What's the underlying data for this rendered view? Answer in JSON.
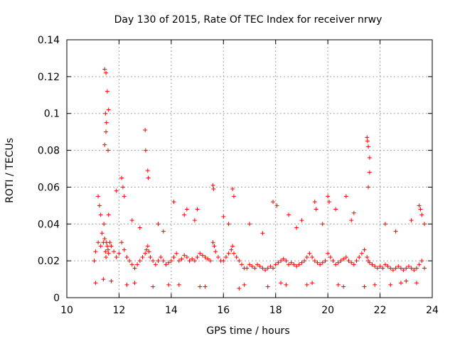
{
  "chart_data": {
    "type": "scatter",
    "title": "Day 130 of 2015, Rate Of TEC Index for receiver nrwy",
    "xlabel": "GPS time / hours",
    "ylabel": "ROTI / TECUs",
    "xlim": [
      10,
      24
    ],
    "ylim": [
      0,
      0.14
    ],
    "x_ticks": [
      10,
      12,
      14,
      16,
      18,
      20,
      22,
      24
    ],
    "x_tick_labels": [
      "10",
      "12",
      "14",
      "16",
      "18",
      "20",
      "22",
      "24"
    ],
    "y_ticks": [
      0,
      0.02,
      0.04,
      0.06,
      0.08,
      0.1,
      0.12,
      0.14
    ],
    "y_tick_labels": [
      "0",
      "0.02",
      "0.04",
      "0.06",
      "0.08",
      "0.1",
      "0.12",
      "0.14"
    ],
    "grid": true,
    "marker": "+",
    "marker_color": "#ff0000",
    "series": [
      {
        "name": "ROTI",
        "x": [
          11.05,
          11.1,
          11.2,
          11.3,
          11.35,
          11.4,
          11.42,
          11.45,
          11.48,
          11.5,
          11.52,
          11.55,
          11.58,
          11.6,
          11.65,
          11.7,
          11.8,
          11.9,
          12.0,
          12.1,
          12.2,
          12.3,
          12.4,
          12.5,
          12.6,
          12.7,
          12.8,
          12.9,
          13.0,
          13.05,
          13.1,
          13.15,
          13.2,
          13.3,
          13.4,
          13.5,
          13.6,
          13.7,
          13.8,
          13.9,
          14.0,
          14.1,
          14.2,
          14.3,
          14.4,
          14.5,
          14.6,
          14.7,
          14.8,
          14.9,
          15.0,
          15.1,
          15.2,
          15.3,
          15.4,
          15.5,
          15.6,
          15.65,
          15.7,
          15.8,
          15.9,
          16.0,
          16.1,
          16.2,
          16.3,
          16.35,
          16.4,
          16.5,
          16.6,
          16.7,
          16.8,
          16.9,
          17.0,
          17.1,
          17.2,
          17.3,
          17.4,
          17.5,
          17.6,
          17.7,
          17.8,
          17.9,
          18.0,
          18.1,
          18.2,
          18.3,
          18.4,
          18.5,
          18.6,
          18.7,
          18.8,
          18.9,
          19.0,
          19.1,
          19.2,
          19.3,
          19.4,
          19.5,
          19.6,
          19.7,
          19.8,
          19.9,
          20.0,
          20.1,
          20.2,
          20.3,
          20.4,
          20.5,
          20.6,
          20.7,
          20.8,
          20.9,
          21.0,
          21.1,
          21.2,
          21.3,
          21.4,
          21.5,
          21.55,
          21.6,
          21.7,
          21.8,
          21.9,
          22.0,
          22.1,
          22.2,
          22.3,
          22.4,
          22.5,
          22.6,
          22.7,
          22.8,
          22.9,
          23.0,
          23.1,
          23.2,
          23.3,
          23.4,
          23.5,
          23.6,
          23.7,
          11.45,
          11.5,
          11.55,
          11.6,
          11.48,
          11.52,
          11.5,
          11.45,
          11.58,
          13.0,
          13.02,
          13.1,
          13.12,
          12.1,
          12.15,
          12.2,
          11.9,
          14.1,
          14.6,
          15.6,
          15.62,
          16.35,
          16.4,
          17.9,
          18.05,
          19.5,
          19.55,
          20.0,
          20.05,
          20.7,
          21.5,
          21.52,
          21.55,
          21.6,
          21.6,
          21.55,
          23.5,
          23.55,
          23.6,
          11.2,
          11.25,
          11.3,
          12.5,
          13.5,
          14.5,
          15.0,
          16.0,
          17.0,
          18.5,
          19.0,
          20.3,
          21.0,
          22.2,
          23.2,
          11.6,
          12.8,
          13.7,
          14.9,
          16.2,
          17.5,
          18.8,
          19.8,
          20.9,
          22.6,
          23.7,
          11.1,
          11.7,
          12.3,
          13.3,
          14.3,
          15.3,
          16.6,
          17.7,
          18.4,
          19.4,
          20.4,
          21.4,
          22.4,
          23.4,
          11.4,
          12.6,
          13.9,
          15.1,
          16.8,
          18.2,
          19.2,
          20.6,
          21.8,
          22.8,
          23.0
        ],
        "y": [
          0.02,
          0.025,
          0.03,
          0.028,
          0.035,
          0.03,
          0.04,
          0.032,
          0.025,
          0.022,
          0.03,
          0.028,
          0.026,
          0.024,
          0.03,
          0.028,
          0.025,
          0.022,
          0.024,
          0.03,
          0.026,
          0.022,
          0.02,
          0.018,
          0.016,
          0.018,
          0.02,
          0.022,
          0.024,
          0.026,
          0.028,
          0.025,
          0.022,
          0.02,
          0.018,
          0.02,
          0.022,
          0.02,
          0.018,
          0.019,
          0.02,
          0.022,
          0.024,
          0.02,
          0.021,
          0.023,
          0.022,
          0.02,
          0.021,
          0.02,
          0.022,
          0.024,
          0.023,
          0.022,
          0.021,
          0.02,
          0.03,
          0.028,
          0.025,
          0.022,
          0.02,
          0.02,
          0.022,
          0.024,
          0.026,
          0.028,
          0.024,
          0.022,
          0.02,
          0.018,
          0.016,
          0.016,
          0.018,
          0.017,
          0.016,
          0.018,
          0.017,
          0.016,
          0.015,
          0.016,
          0.017,
          0.016,
          0.018,
          0.019,
          0.02,
          0.021,
          0.02,
          0.018,
          0.019,
          0.018,
          0.017,
          0.018,
          0.019,
          0.02,
          0.022,
          0.024,
          0.022,
          0.02,
          0.019,
          0.018,
          0.019,
          0.02,
          0.024,
          0.022,
          0.02,
          0.018,
          0.019,
          0.02,
          0.021,
          0.022,
          0.02,
          0.019,
          0.018,
          0.02,
          0.022,
          0.024,
          0.026,
          0.022,
          0.02,
          0.019,
          0.018,
          0.017,
          0.016,
          0.017,
          0.016,
          0.018,
          0.017,
          0.016,
          0.015,
          0.016,
          0.017,
          0.016,
          0.015,
          0.016,
          0.017,
          0.016,
          0.015,
          0.016,
          0.018,
          0.02,
          0.016,
          0.124,
          0.122,
          0.112,
          0.102,
          0.1,
          0.095,
          0.09,
          0.083,
          0.08,
          0.091,
          0.08,
          0.069,
          0.065,
          0.065,
          0.06,
          0.055,
          0.058,
          0.052,
          0.048,
          0.061,
          0.059,
          0.059,
          0.055,
          0.052,
          0.05,
          0.052,
          0.048,
          0.055,
          0.052,
          0.055,
          0.087,
          0.085,
          0.082,
          0.076,
          0.068,
          0.06,
          0.05,
          0.048,
          0.045,
          0.055,
          0.05,
          0.045,
          0.042,
          0.04,
          0.045,
          0.048,
          0.044,
          0.04,
          0.045,
          0.042,
          0.048,
          0.046,
          0.04,
          0.042,
          0.045,
          0.038,
          0.036,
          0.042,
          0.04,
          0.035,
          0.038,
          0.04,
          0.042,
          0.036,
          0.04,
          0.008,
          0.009,
          0.007,
          0.006,
          0.007,
          0.006,
          0.005,
          0.006,
          0.007,
          0.008,
          0.007,
          0.006,
          0.007,
          0.008,
          0.01,
          0.008,
          0.007,
          0.006,
          0.007,
          0.008,
          0.007,
          0.006,
          0.007,
          0.008,
          0.009
        ]
      }
    ]
  }
}
